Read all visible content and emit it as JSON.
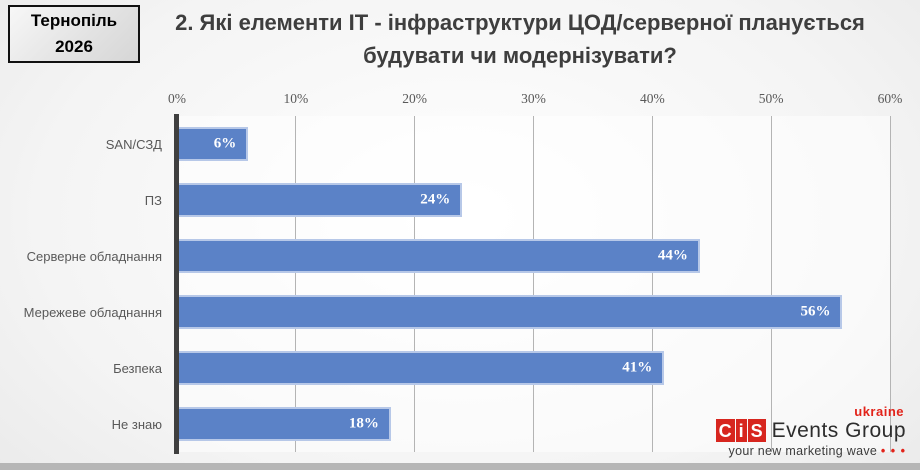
{
  "slide": {
    "badge": {
      "line1": "Тернопіль",
      "line2": "2026"
    },
    "title": "2. Які елементи ІТ - інфраструктури ЦОД/серверної планується будувати чи модернізувати?"
  },
  "chart_data": {
    "type": "bar",
    "orientation": "horizontal",
    "title": "2. Які елементи ІТ - інфраструктури ЦОД/серверної планується будувати чи модернізувати?",
    "categories": [
      "SAN/СЗД",
      "ПЗ",
      "Серверне обладнання",
      "Мережеве обладнання",
      "Безпека",
      "Не знаю"
    ],
    "values": [
      6,
      24,
      44,
      56,
      41,
      18
    ],
    "value_labels": [
      "6%",
      "24%",
      "44%",
      "56%",
      "41%",
      "18%"
    ],
    "x_tick_labels": [
      "0%",
      "10%",
      "20%",
      "30%",
      "40%",
      "50%",
      "60%"
    ],
    "x_tick_values": [
      0,
      10,
      20,
      30,
      40,
      50,
      60
    ],
    "xlim": [
      0,
      60
    ],
    "grid": "vertical",
    "legend": "none",
    "bar_color": "#5b82c7",
    "bar_border_color": "#b7c8e8",
    "value_label_color": "#ffffff"
  },
  "logo": {
    "blocks": [
      "C",
      "i",
      "S"
    ],
    "name": "Events Group",
    "region": "ukraine",
    "tagline": "your new marketing wave ",
    "dots": "• • •"
  }
}
